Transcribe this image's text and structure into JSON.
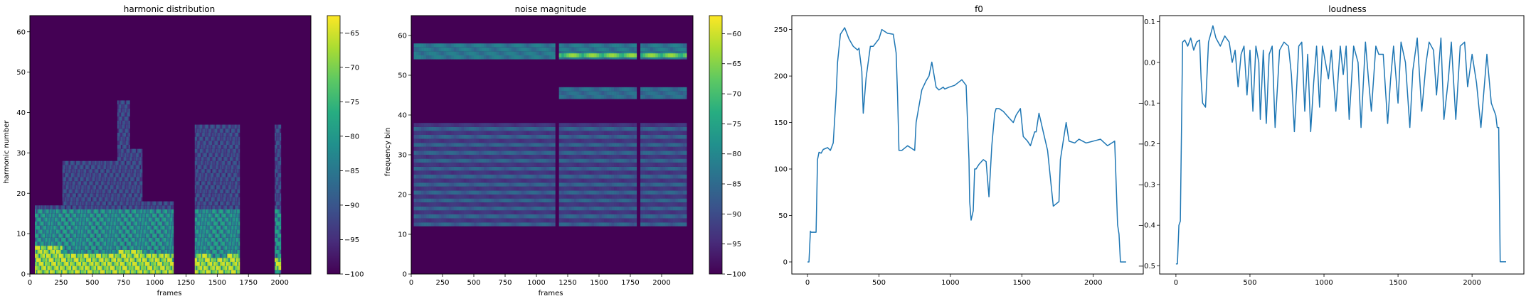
{
  "chart_data": [
    {
      "type": "heatmap",
      "title": "harmonic distribution",
      "xlabel": "frames",
      "ylabel": "harmonic number",
      "xlim": [
        0,
        2250
      ],
      "ylim": [
        0,
        64
      ],
      "xticks": [
        0,
        250,
        500,
        750,
        1000,
        1250,
        1500,
        1750,
        2000
      ],
      "yticks": [
        0,
        10,
        20,
        30,
        40,
        50,
        60
      ],
      "colorbar": {
        "min": -100,
        "max": -62.5,
        "ticks": [
          -65,
          -70,
          -75,
          -80,
          -85,
          -90,
          -95,
          -100
        ]
      },
      "colormap": [
        "#440154",
        "#472c7a",
        "#3b518b",
        "#2c718e",
        "#21908d",
        "#27ad81",
        "#5cc863",
        "#aadc32",
        "#fde725"
      ],
      "segments": [
        {
          "x": [
            40,
            260
          ],
          "top": 16,
          "bright": [
            0,
            6
          ]
        },
        {
          "x": [
            260,
            700
          ],
          "top": 27,
          "bright": [
            0,
            4
          ]
        },
        {
          "x": [
            700,
            800
          ],
          "top": 42,
          "bright": [
            0,
            5
          ]
        },
        {
          "x": [
            800,
            900
          ],
          "top": 30,
          "bright": [
            0,
            5
          ]
        },
        {
          "x": [
            900,
            1150
          ],
          "top": 17,
          "bright": [
            0,
            4
          ]
        },
        {
          "x": [
            1320,
            1450
          ],
          "top": 36,
          "bright": [
            0,
            4
          ]
        },
        {
          "x": [
            1450,
            1580
          ],
          "top": 36,
          "bright": [
            0,
            3
          ]
        },
        {
          "x": [
            1580,
            1680
          ],
          "top": 36,
          "bright": [
            0,
            4
          ]
        },
        {
          "x": [
            1960,
            2010
          ],
          "top": 36,
          "bright": [
            1,
            3
          ]
        }
      ]
    },
    {
      "type": "heatmap",
      "title": "noise magnitude",
      "xlabel": "frames",
      "ylabel": "frequency bin",
      "xlim": [
        0,
        2250
      ],
      "ylim": [
        0,
        65
      ],
      "xticks": [
        0,
        250,
        500,
        750,
        1000,
        1250,
        1500,
        1750,
        2000
      ],
      "yticks": [
        0,
        10,
        20,
        30,
        40,
        50,
        60
      ],
      "colorbar": {
        "min": -100,
        "max": -57,
        "ticks": [
          -60,
          -65,
          -70,
          -75,
          -80,
          -85,
          -90,
          -95,
          -100
        ]
      },
      "bands": [
        {
          "y": [
            54,
            58
          ],
          "segments": [
            [
              20,
              1150
            ],
            [
              1180,
              1800
            ],
            [
              1830,
              2200
            ]
          ],
          "level": 0.45
        },
        {
          "y": [
            54.5,
            55.5
          ],
          "segments": [
            [
              1180,
              1800
            ],
            [
              1830,
              2200
            ]
          ],
          "level": 0.85
        },
        {
          "y": [
            44,
            47
          ],
          "segments": [
            [
              1180,
              1800
            ],
            [
              1830,
              2200
            ]
          ],
          "level": 0.4
        },
        {
          "y": [
            12,
            38
          ],
          "segments": [
            [
              20,
              1150
            ],
            [
              1180,
              1800
            ],
            [
              1830,
              2200
            ]
          ],
          "level": 0.35
        }
      ]
    },
    {
      "type": "line",
      "title": "f0",
      "xlabel": "",
      "ylabel": "",
      "xlim": [
        -110,
        2350
      ],
      "ylim": [
        -13,
        265
      ],
      "xticks": [
        0,
        500,
        1000,
        1500,
        2000
      ],
      "yticks": [
        0,
        50,
        100,
        150,
        200,
        250
      ],
      "color": "#1f77b4",
      "x": [
        0,
        10,
        20,
        25,
        60,
        70,
        80,
        95,
        110,
        140,
        160,
        180,
        200,
        210,
        230,
        260,
        290,
        320,
        350,
        360,
        380,
        390,
        410,
        440,
        460,
        500,
        520,
        560,
        600,
        620,
        630,
        640,
        660,
        700,
        750,
        760,
        800,
        830,
        850,
        870,
        900,
        920,
        950,
        960,
        990,
        1030,
        1080,
        1110,
        1130,
        1135,
        1145,
        1160,
        1170,
        1180,
        1200,
        1230,
        1250,
        1270,
        1290,
        1310,
        1320,
        1340,
        1370,
        1410,
        1440,
        1460,
        1490,
        1510,
        1540,
        1560,
        1590,
        1600,
        1620,
        1650,
        1680,
        1700,
        1720,
        1760,
        1770,
        1790,
        1810,
        1830,
        1870,
        1900,
        1950,
        2000,
        2050,
        2100,
        2150,
        2170,
        2180,
        2190,
        2200,
        2230
      ],
      "y": [
        0,
        0,
        33,
        32,
        32,
        110,
        118,
        117,
        121,
        123,
        120,
        128,
        180,
        215,
        245,
        252,
        240,
        232,
        228,
        230,
        205,
        160,
        198,
        232,
        232,
        240,
        250,
        246,
        245,
        225,
        180,
        120,
        120,
        125,
        120,
        150,
        185,
        195,
        200,
        215,
        188,
        185,
        188,
        186,
        188,
        190,
        196,
        190,
        110,
        65,
        45,
        55,
        100,
        100,
        105,
        110,
        108,
        70,
        125,
        160,
        165,
        165,
        162,
        155,
        150,
        158,
        165,
        135,
        130,
        125,
        140,
        140,
        160,
        140,
        120,
        90,
        60,
        65,
        110,
        130,
        150,
        130,
        128,
        132,
        128,
        130,
        132,
        125,
        130,
        40,
        30,
        0,
        0,
        0
      ]
    },
    {
      "type": "line",
      "title": "loudness",
      "xlabel": "",
      "ylabel": "",
      "xlim": [
        -110,
        2350
      ],
      "ylim": [
        -0.52,
        0.115
      ],
      "xticks": [
        0,
        500,
        1000,
        1500,
        2000
      ],
      "yticks": [
        0.1,
        0.0,
        -0.1,
        -0.2,
        -0.3,
        -0.4,
        -0.5
      ],
      "color": "#1f77b4",
      "x": [
        0,
        10,
        20,
        30,
        45,
        60,
        80,
        100,
        120,
        140,
        160,
        170,
        180,
        200,
        220,
        250,
        270,
        300,
        330,
        360,
        380,
        400,
        420,
        440,
        460,
        480,
        500,
        520,
        540,
        560,
        570,
        590,
        610,
        630,
        650,
        670,
        700,
        730,
        760,
        780,
        800,
        830,
        850,
        870,
        890,
        910,
        930,
        950,
        970,
        990,
        1010,
        1030,
        1050,
        1080,
        1110,
        1130,
        1150,
        1170,
        1200,
        1230,
        1250,
        1280,
        1300,
        1320,
        1350,
        1370,
        1400,
        1430,
        1450,
        1470,
        1500,
        1520,
        1550,
        1580,
        1600,
        1630,
        1660,
        1690,
        1710,
        1740,
        1760,
        1790,
        1810,
        1840,
        1860,
        1890,
        1920,
        1950,
        1970,
        2000,
        2030,
        2060,
        2100,
        2130,
        2160,
        2170,
        2180,
        2190,
        2200,
        2230
      ],
      "y": [
        -0.495,
        -0.495,
        -0.4,
        -0.39,
        0.05,
        0.055,
        0.04,
        0.06,
        0.03,
        0.05,
        0.055,
        -0.04,
        -0.1,
        -0.11,
        0.05,
        0.09,
        0.06,
        0.04,
        0.065,
        0.05,
        0.0,
        0.03,
        -0.06,
        0.02,
        0.04,
        -0.08,
        0.03,
        -0.12,
        0.04,
        0.0,
        -0.14,
        0.03,
        -0.15,
        0.02,
        0.04,
        -0.16,
        0.03,
        0.05,
        0.04,
        -0.03,
        -0.17,
        0.04,
        0.05,
        -0.12,
        0.02,
        -0.17,
        -0.05,
        0.04,
        -0.11,
        0.04,
        0.0,
        -0.04,
        0.03,
        -0.12,
        0.04,
        -0.03,
        0.04,
        -0.14,
        0.04,
        0.0,
        -0.16,
        0.05,
        -0.04,
        -0.12,
        0.04,
        0.02,
        0.02,
        -0.15,
        -0.04,
        0.04,
        -0.1,
        0.05,
        0.0,
        -0.16,
        -0.02,
        0.06,
        -0.12,
        0.0,
        0.05,
        0.03,
        -0.08,
        0.06,
        -0.14,
        -0.04,
        0.05,
        -0.14,
        0.04,
        0.05,
        -0.06,
        0.02,
        -0.05,
        -0.16,
        0.02,
        -0.1,
        -0.13,
        -0.16,
        -0.16,
        -0.49,
        -0.49,
        -0.49
      ]
    }
  ]
}
